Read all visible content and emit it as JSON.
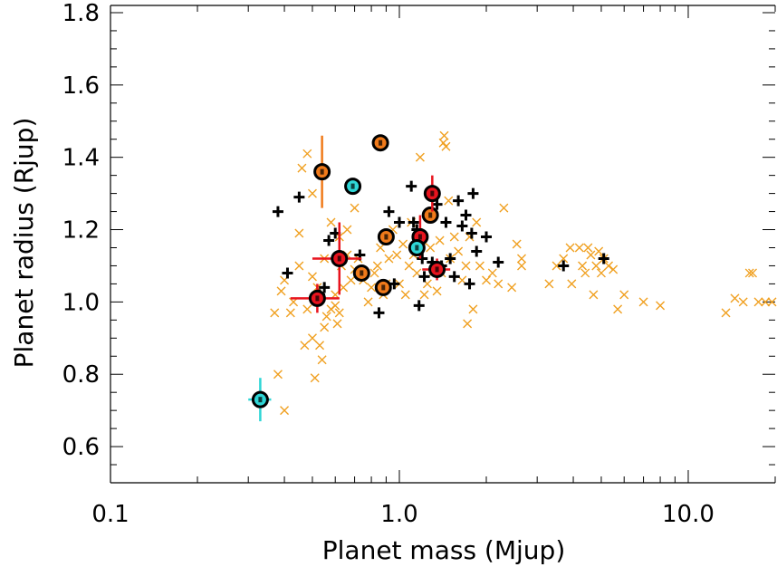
{
  "chart_data": {
    "type": "scatter",
    "title": "",
    "xlabel": "Planet mass (Mjup)",
    "ylabel": "Planet radius (Rjup)",
    "xscale": "log",
    "xlim": [
      0.1,
      20
    ],
    "ylim": [
      0.5,
      1.82
    ],
    "xticks": [
      {
        "v": 0.1,
        "label": "0.1"
      },
      {
        "v": 1.0,
        "label": "1.0"
      },
      {
        "v": 10.0,
        "label": "10.0"
      }
    ],
    "yticks": [
      {
        "v": 0.6,
        "label": "0.6"
      },
      {
        "v": 0.8,
        "label": "0.8"
      },
      {
        "v": 1.0,
        "label": "1.0"
      },
      {
        "v": 1.2,
        "label": "1.2"
      },
      {
        "v": 1.4,
        "label": "1.4"
      },
      {
        "v": 1.6,
        "label": "1.6"
      },
      {
        "v": 1.8,
        "label": "1.8"
      }
    ],
    "grid": false,
    "colors": {
      "cross": "#f0a020",
      "plus": "#000000",
      "orange": "#f07a1a",
      "red": "#e8141e",
      "cyan": "#2fd6d6"
    },
    "series": [
      {
        "marker": "x",
        "color": "#f0a020",
        "points": [
          [
            0.38,
            0.8
          ],
          [
            0.4,
            0.7
          ],
          [
            0.37,
            0.97
          ],
          [
            0.42,
            0.97
          ],
          [
            0.43,
            1.0
          ],
          [
            0.39,
            1.03
          ],
          [
            0.4,
            1.06
          ],
          [
            0.45,
            1.1
          ],
          [
            0.47,
            0.88
          ],
          [
            0.48,
            0.98
          ],
          [
            0.5,
            0.9
          ],
          [
            0.51,
            0.79
          ],
          [
            0.53,
            0.88
          ],
          [
            0.54,
            0.84
          ],
          [
            0.55,
            0.93
          ],
          [
            0.56,
            0.96
          ],
          [
            0.52,
            1.04
          ],
          [
            0.5,
            1.07
          ],
          [
            0.58,
            0.98
          ],
          [
            0.6,
            0.99
          ],
          [
            0.61,
            0.94
          ],
          [
            0.62,
            0.97
          ],
          [
            0.64,
            1.04
          ],
          [
            0.63,
            1.1
          ],
          [
            0.66,
            1.13
          ],
          [
            0.68,
            1.06
          ],
          [
            0.7,
            1.09
          ],
          [
            0.72,
            1.12
          ],
          [
            0.75,
            1.06
          ],
          [
            0.78,
            1.0
          ],
          [
            0.8,
            1.04
          ],
          [
            0.82,
            1.08
          ],
          [
            0.84,
            1.1
          ],
          [
            0.86,
            1.15
          ],
          [
            0.88,
            1.02
          ],
          [
            0.9,
            1.05
          ],
          [
            0.92,
            1.12
          ],
          [
            0.95,
            1.2
          ],
          [
            0.98,
            1.13
          ],
          [
            1.0,
            1.05
          ],
          [
            1.03,
            1.16
          ],
          [
            1.05,
            1.02
          ],
          [
            1.08,
            1.1
          ],
          [
            1.1,
            1.22
          ],
          [
            1.12,
            1.13
          ],
          [
            1.15,
            1.08
          ],
          [
            1.18,
            1.4
          ],
          [
            1.2,
            1.17
          ],
          [
            1.22,
            1.02
          ],
          [
            1.25,
            1.05
          ],
          [
            1.28,
            1.15
          ],
          [
            1.3,
            1.08
          ],
          [
            1.35,
            1.03
          ],
          [
            1.38,
            1.17
          ],
          [
            1.4,
            1.08
          ],
          [
            1.42,
            1.44
          ],
          [
            1.43,
            1.46
          ],
          [
            1.45,
            1.43
          ],
          [
            1.48,
            1.28
          ],
          [
            1.5,
            1.12
          ],
          [
            1.55,
            1.18
          ],
          [
            1.6,
            1.14
          ],
          [
            1.65,
            1.06
          ],
          [
            1.7,
            1.1
          ],
          [
            1.72,
            0.94
          ],
          [
            1.75,
            1.18
          ],
          [
            1.8,
            0.98
          ],
          [
            1.85,
            1.22
          ],
          [
            1.9,
            1.1
          ],
          [
            2.0,
            1.06
          ],
          [
            2.1,
            1.08
          ],
          [
            2.2,
            1.05
          ],
          [
            2.3,
            1.26
          ],
          [
            2.45,
            1.04
          ],
          [
            2.55,
            1.16
          ],
          [
            2.65,
            1.1
          ],
          [
            2.65,
            1.12
          ],
          [
            3.3,
            1.05
          ],
          [
            3.5,
            1.1
          ],
          [
            3.7,
            1.12
          ],
          [
            3.9,
            1.15
          ],
          [
            3.95,
            1.05
          ],
          [
            4.2,
            1.15
          ],
          [
            4.3,
            1.1
          ],
          [
            4.4,
            1.08
          ],
          [
            4.5,
            1.15
          ],
          [
            4.6,
            1.13
          ],
          [
            4.7,
            1.02
          ],
          [
            4.8,
            1.1
          ],
          [
            4.9,
            1.14
          ],
          [
            5.0,
            1.08
          ],
          [
            5.1,
            1.12
          ],
          [
            5.3,
            1.1
          ],
          [
            5.5,
            1.09
          ],
          [
            5.7,
            0.98
          ],
          [
            6.0,
            1.02
          ],
          [
            7.0,
            1.0
          ],
          [
            8.0,
            0.99
          ],
          [
            13.5,
            0.97
          ],
          [
            14.5,
            1.01
          ],
          [
            15.5,
            1.0
          ],
          [
            16.3,
            1.08
          ],
          [
            16.7,
            1.08
          ],
          [
            17.5,
            1.0
          ],
          [
            18.5,
            1.0
          ],
          [
            19.5,
            1.0
          ],
          [
            0.46,
            1.37
          ],
          [
            0.48,
            1.41
          ],
          [
            0.5,
            1.3
          ],
          [
            0.54,
            1.35
          ],
          [
            0.58,
            1.22
          ],
          [
            0.62,
            1.18
          ],
          [
            0.66,
            1.2
          ],
          [
            0.7,
            1.26
          ],
          [
            0.45,
            1.19
          ],
          [
            0.55,
            1.12
          ],
          [
            0.6,
            1.02
          ]
        ]
      },
      {
        "marker": "+",
        "color": "#000000",
        "points": [
          [
            0.38,
            1.25
          ],
          [
            0.41,
            1.08
          ],
          [
            0.45,
            1.29
          ],
          [
            0.53,
            1.02
          ],
          [
            0.55,
            1.04
          ],
          [
            0.57,
            1.17
          ],
          [
            0.6,
            1.19
          ],
          [
            0.73,
            1.13
          ],
          [
            0.85,
            0.97
          ],
          [
            0.92,
            1.25
          ],
          [
            0.96,
            1.05
          ],
          [
            1.0,
            1.22
          ],
          [
            1.1,
            1.32
          ],
          [
            1.12,
            1.22
          ],
          [
            1.15,
            1.2
          ],
          [
            1.17,
            0.99
          ],
          [
            1.2,
            1.12
          ],
          [
            1.22,
            1.07
          ],
          [
            1.3,
            1.11
          ],
          [
            1.35,
            1.27
          ],
          [
            1.4,
            1.1
          ],
          [
            1.45,
            1.22
          ],
          [
            1.5,
            1.12
          ],
          [
            1.55,
            1.07
          ],
          [
            1.6,
            1.28
          ],
          [
            1.65,
            1.21
          ],
          [
            1.7,
            1.24
          ],
          [
            1.75,
            1.05
          ],
          [
            1.78,
            1.19
          ],
          [
            1.8,
            1.3
          ],
          [
            1.85,
            1.14
          ],
          [
            2.0,
            1.18
          ],
          [
            2.2,
            1.11
          ],
          [
            3.7,
            1.1
          ],
          [
            5.1,
            1.12
          ]
        ]
      },
      {
        "marker": "circle",
        "color": "#f07a1a",
        "label_style": "numbered",
        "points": [
          [
            0.54,
            1.36
          ],
          [
            0.86,
            1.44
          ],
          [
            0.74,
            1.08
          ],
          [
            0.88,
            1.04
          ],
          [
            0.9,
            1.18
          ],
          [
            1.28,
            1.24
          ]
        ],
        "yerr": [
          0.1,
          0,
          0,
          0,
          0,
          0
        ],
        "xerr": [
          0,
          0.05,
          0,
          0,
          0,
          0
        ]
      },
      {
        "marker": "circle",
        "color": "#e8141e",
        "label_style": "numbered",
        "points": [
          [
            0.52,
            1.01
          ],
          [
            0.62,
            1.12
          ],
          [
            1.18,
            1.18
          ],
          [
            1.3,
            1.3
          ],
          [
            1.35,
            1.09
          ]
        ],
        "yerr": [
          0.04,
          0.1,
          0.06,
          0.05,
          0.03
        ],
        "xerr": [
          0.1,
          0.12,
          0.06,
          0.05,
          0.15
        ]
      },
      {
        "marker": "circle",
        "color": "#2fd6d6",
        "label_style": "numbered",
        "points": [
          [
            0.69,
            1.32
          ],
          [
            1.15,
            1.15
          ],
          [
            0.33,
            0.73
          ]
        ],
        "yerr": [
          0,
          0,
          0.06
        ],
        "xerr": [
          0,
          0,
          0.03
        ]
      }
    ]
  }
}
